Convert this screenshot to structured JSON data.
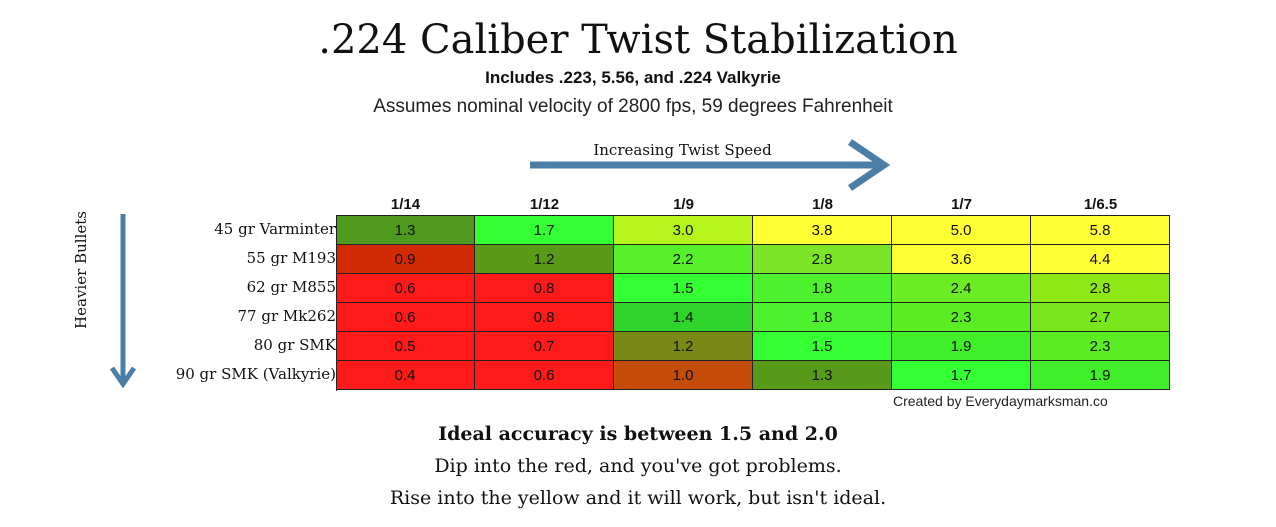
{
  "chart_data": {
    "type": "heatmap",
    "title": ".224 Caliber Twist Stabilization",
    "subtitle": "Includes .223, 5.56, and .224 Valkyrie",
    "subtitle2": "Assumes nominal velocity of 2800 fps, 59 degrees Fahrenheit",
    "xlabel": "Increasing Twist Speed",
    "ylabel": "Heavier Bullets",
    "columns": [
      "1/14",
      "1/12",
      "1/9",
      "1/8",
      "1/7",
      "1/6.5"
    ],
    "rows": [
      "45 gr Varminter",
      "55 gr M193",
      "62 gr M855",
      "77 gr Mk262",
      "80 gr SMK",
      "90 gr SMK (Valkyrie)"
    ],
    "values": [
      [
        "1.3",
        "1.7",
        "3.0",
        "3.8",
        "5.0",
        "5.8"
      ],
      [
        "0.9",
        "1.2",
        "2.2",
        "2.8",
        "3.6",
        "4.4"
      ],
      [
        "0.6",
        "0.8",
        "1.5",
        "1.8",
        "2.4",
        "2.8"
      ],
      [
        "0.6",
        "0.8",
        "1.4",
        "1.8",
        "2.3",
        "2.7"
      ],
      [
        "0.5",
        "0.7",
        "1.2",
        "1.5",
        "1.9",
        "2.3"
      ],
      [
        "0.4",
        "0.6",
        "1.0",
        "1.3",
        "1.7",
        "1.9"
      ]
    ],
    "colors": [
      [
        "#4f9a1e",
        "#33ff33",
        "#b6f51b",
        "#ffff33",
        "#ffff33",
        "#ffff33"
      ],
      [
        "#d22a05",
        "#5b9a18",
        "#57f02a",
        "#7de527",
        "#ffff33",
        "#ffff33"
      ],
      [
        "#ff1a1a",
        "#ff1a1a",
        "#33ff33",
        "#4ef12e",
        "#6bec25",
        "#8ee815"
      ],
      [
        "#ff1a1a",
        "#ff1a1a",
        "#2fd42a",
        "#4ef12e",
        "#5bed24",
        "#78e81c"
      ],
      [
        "#ff1a1a",
        "#ff1a1a",
        "#7a8a16",
        "#33ff33",
        "#40ee2a",
        "#5bed24"
      ],
      [
        "#ff1a1a",
        "#ff1a1a",
        "#c24c08",
        "#589a1a",
        "#33ff33",
        "#40ee2a"
      ]
    ],
    "credit": "Created by Everydaymarksman.co",
    "notes": [
      "Ideal accuracy is between 1.5 and 2.0",
      "Dip into the red, and you've got problems.",
      "Rise into the yellow and it will work, but isn't ideal."
    ],
    "arrow_color": "#4a7ea6"
  }
}
